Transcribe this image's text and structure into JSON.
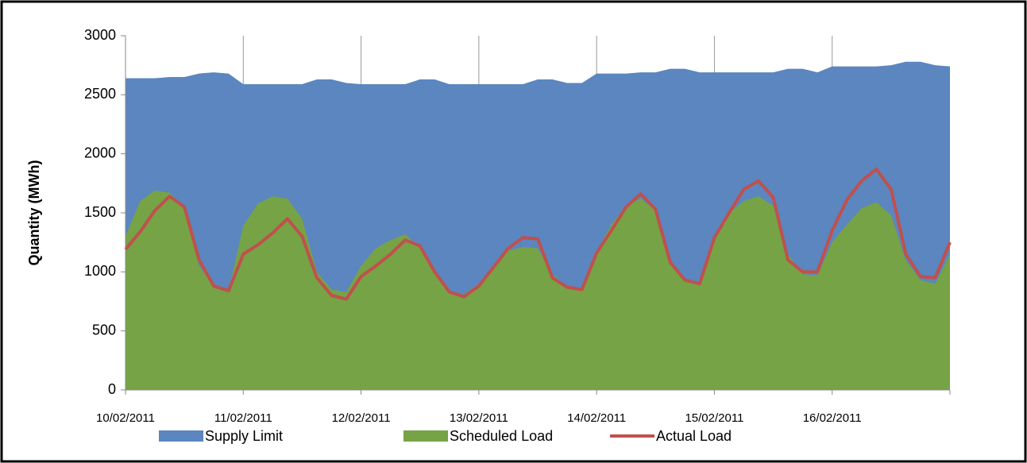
{
  "chart_data": {
    "type": "area",
    "y_label": "Quantity (MWh)",
    "categories": [
      "10/02/2011",
      null,
      null,
      null,
      null,
      null,
      null,
      null,
      "11/02/2011",
      null,
      null,
      null,
      null,
      null,
      null,
      null,
      "12/02/2011",
      null,
      null,
      null,
      null,
      null,
      null,
      null,
      "13/02/2011",
      null,
      null,
      null,
      null,
      null,
      null,
      null,
      "14/02/2011",
      null,
      null,
      null,
      null,
      null,
      null,
      null,
      "15/02/2011",
      null,
      null,
      null,
      null,
      null,
      null,
      null,
      "16/02/2011",
      null,
      null,
      null,
      null,
      null,
      null,
      null,
      null
    ],
    "series": [
      {
        "name": "Supply Limit",
        "color": "#5b86bf",
        "kind": "area",
        "values": [
          2640,
          2640,
          2640,
          2650,
          2650,
          2680,
          2690,
          2680,
          2590,
          2590,
          2590,
          2590,
          2590,
          2630,
          2630,
          2600,
          2590,
          2590,
          2590,
          2590,
          2630,
          2630,
          2590,
          2590,
          2590,
          2590,
          2590,
          2590,
          2630,
          2630,
          2600,
          2600,
          2680,
          2680,
          2680,
          2690,
          2690,
          2720,
          2720,
          2690,
          2690,
          2690,
          2690,
          2690,
          2690,
          2720,
          2720,
          2690,
          2740,
          2740,
          2740,
          2740,
          2750,
          2780,
          2780,
          2750,
          2740
        ]
      },
      {
        "name": "Scheduled Load",
        "color": "#76a345",
        "kind": "area",
        "values": [
          1300,
          1600,
          1690,
          1670,
          1550,
          1050,
          880,
          840,
          1390,
          1580,
          1640,
          1620,
          1450,
          1000,
          850,
          830,
          1050,
          1200,
          1270,
          1320,
          1200,
          1000,
          830,
          810,
          900,
          1050,
          1180,
          1210,
          1200,
          980,
          870,
          860,
          1170,
          1400,
          1560,
          1620,
          1520,
          1080,
          930,
          910,
          1290,
          1500,
          1600,
          1640,
          1560,
          1150,
          980,
          970,
          1250,
          1400,
          1540,
          1590,
          1480,
          1100,
          930,
          900,
          1150
        ]
      },
      {
        "name": "Actual Load",
        "color": "#c0504d",
        "kind": "line",
        "values": [
          1190,
          1340,
          1520,
          1640,
          1550,
          1100,
          880,
          840,
          1150,
          1230,
          1330,
          1450,
          1300,
          950,
          800,
          770,
          960,
          1050,
          1150,
          1270,
          1220,
          1000,
          830,
          790,
          880,
          1040,
          1200,
          1290,
          1280,
          950,
          870,
          850,
          1160,
          1350,
          1550,
          1660,
          1530,
          1080,
          930,
          900,
          1290,
          1500,
          1700,
          1770,
          1630,
          1100,
          1000,
          1000,
          1350,
          1610,
          1770,
          1870,
          1700,
          1150,
          960,
          950,
          1250
        ]
      }
    ],
    "ylim": [
      0,
      3000
    ],
    "yticks": [
      0,
      500,
      1000,
      1500,
      2000,
      2500,
      3000
    ],
    "legend": "bottom"
  }
}
